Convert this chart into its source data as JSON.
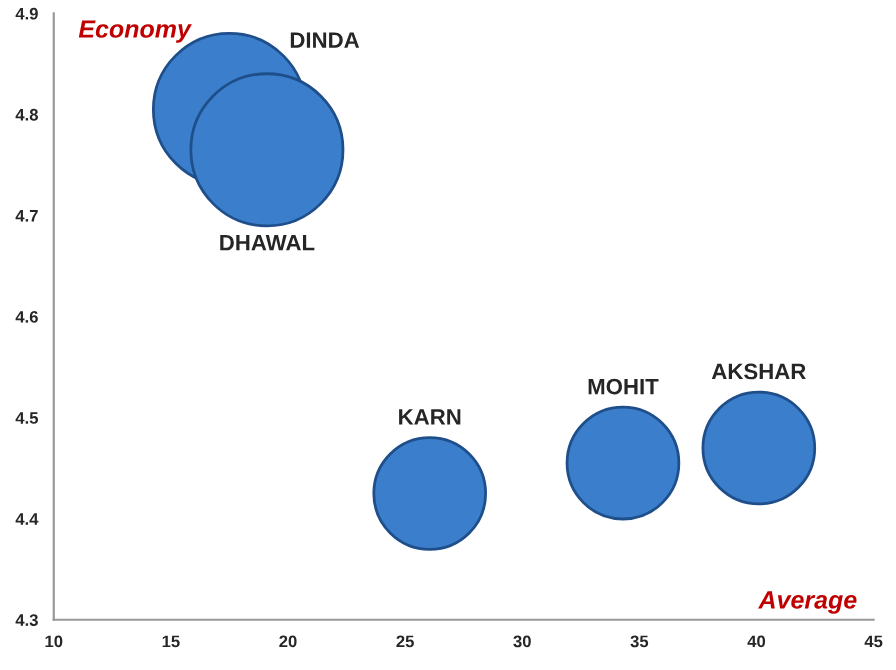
{
  "chart_data": {
    "type": "bubble",
    "xlabel": "Average",
    "ylabel": "Economy",
    "series": [
      {
        "name": "DINDA",
        "color": "#3b7fcc",
        "x": [
          17.5
        ],
        "values": [
          4.805
        ],
        "sizes": [
          1
        ]
      },
      {
        "name": "DHAWAL",
        "color": "#3b7fcc",
        "x": [
          19.1
        ],
        "values": [
          4.765
        ],
        "sizes": [
          1
        ]
      },
      {
        "name": "KARN",
        "color": "#3b7fcc",
        "x": [
          26.05
        ],
        "values": [
          4.425
        ],
        "sizes": [
          0.54
        ]
      },
      {
        "name": "MOHIT",
        "color": "#3b7fcc",
        "x": [
          34.3
        ],
        "values": [
          4.455
        ],
        "sizes": [
          0.54
        ]
      },
      {
        "name": "AKSHAR",
        "color": "#3b7fcc",
        "x": [
          40.1
        ],
        "values": [
          4.47
        ],
        "sizes": [
          0.54
        ]
      }
    ],
    "xlim": [
      10,
      45
    ],
    "xticks": [
      10,
      15,
      20,
      25,
      30,
      35,
      40,
      45
    ],
    "ylim": [
      4.3,
      4.9
    ],
    "yticks": [
      4.3,
      4.4,
      4.5,
      4.6,
      4.7,
      4.8,
      4.9
    ],
    "grid": false,
    "legend": false
  }
}
